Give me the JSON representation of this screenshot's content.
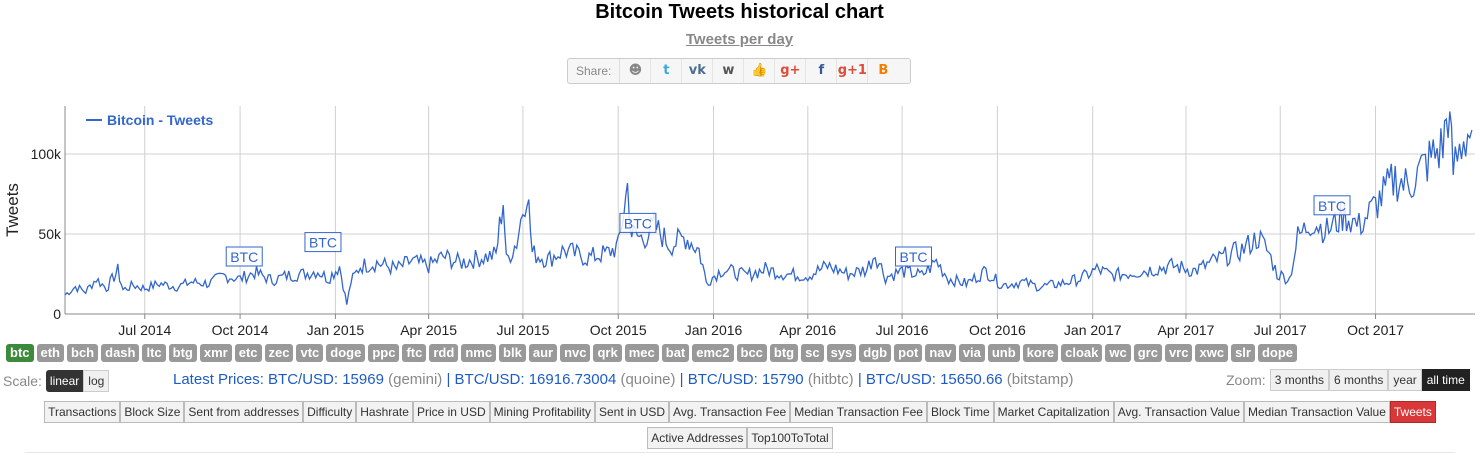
{
  "title": "Bitcoin Tweets historical chart",
  "subtitle": "Tweets per day",
  "share": {
    "label": "Share:",
    "icons": [
      {
        "name": "reddit-icon",
        "glyph": "☻",
        "color": "#888"
      },
      {
        "name": "twitter-icon",
        "glyph": "t",
        "color": "#3aa7e0"
      },
      {
        "name": "vk-icon",
        "glyph": "vk",
        "color": "#4c6c91"
      },
      {
        "name": "weibo-icon",
        "glyph": "w",
        "color": "#555"
      },
      {
        "name": "like-icon",
        "glyph": "👍",
        "color": "#5b79b4"
      },
      {
        "name": "google-plus-icon",
        "glyph": "g+",
        "color": "#dd4b39"
      },
      {
        "name": "facebook-icon",
        "glyph": "f",
        "color": "#3b5998"
      },
      {
        "name": "google-plus-one-icon",
        "glyph": "g+1",
        "color": "#dd4b39"
      },
      {
        "name": "blogger-icon",
        "glyph": "B",
        "color": "#f57d00"
      }
    ]
  },
  "chart_data": {
    "type": "line",
    "ylabel": "Tweets",
    "yticks": [
      {
        "v": 0,
        "label": "0"
      },
      {
        "v": 50000,
        "label": "50k"
      },
      {
        "v": 100000,
        "label": "100k"
      }
    ],
    "ylim": [
      0,
      130000
    ],
    "xlim": [
      "2014-04-15",
      "2018-01-05"
    ],
    "xticks": [
      {
        "date": "2014-07-01",
        "label": "Jul 2014"
      },
      {
        "date": "2014-10-01",
        "label": "Oct 2014"
      },
      {
        "date": "2015-01-01",
        "label": "Jan 2015"
      },
      {
        "date": "2015-04-01",
        "label": "Apr 2015"
      },
      {
        "date": "2015-07-01",
        "label": "Jul 2015"
      },
      {
        "date": "2015-10-01",
        "label": "Oct 2015"
      },
      {
        "date": "2016-01-01",
        "label": "Jan 2016"
      },
      {
        "date": "2016-04-01",
        "label": "Apr 2016"
      },
      {
        "date": "2016-07-01",
        "label": "Jul 2016"
      },
      {
        "date": "2016-10-01",
        "label": "Oct 2016"
      },
      {
        "date": "2017-01-01",
        "label": "Jan 2017"
      },
      {
        "date": "2017-04-01",
        "label": "Apr 2017"
      },
      {
        "date": "2017-07-01",
        "label": "Jul 2017"
      },
      {
        "date": "2017-10-01",
        "label": "Oct 2017"
      }
    ],
    "grid": true,
    "legend_placement": "top-left",
    "series": [
      {
        "name": "Bitcoin - Tweets",
        "color": "#3366cc",
        "points": [
          [
            "2014-04-15",
            12000
          ],
          [
            "2014-04-25",
            17000
          ],
          [
            "2014-05-05",
            14000
          ],
          [
            "2014-05-15",
            22000
          ],
          [
            "2014-05-25",
            16000
          ],
          [
            "2014-06-05",
            27000
          ],
          [
            "2014-06-10",
            15000
          ],
          [
            "2014-06-20",
            18000
          ],
          [
            "2014-07-01",
            16000
          ],
          [
            "2014-07-15",
            19000
          ],
          [
            "2014-08-01",
            17000
          ],
          [
            "2014-08-15",
            20000
          ],
          [
            "2014-09-01",
            19000
          ],
          [
            "2014-09-15",
            24000
          ],
          [
            "2014-10-01",
            22000
          ],
          [
            "2014-10-15",
            26000
          ],
          [
            "2014-11-01",
            21000
          ],
          [
            "2014-11-15",
            24000
          ],
          [
            "2014-12-01",
            25000
          ],
          [
            "2014-12-15",
            27000
          ],
          [
            "2014-12-25",
            22000
          ],
          [
            "2015-01-05",
            30000
          ],
          [
            "2015-01-12",
            6000
          ],
          [
            "2015-01-16",
            20000
          ],
          [
            "2015-01-25",
            30000
          ],
          [
            "2015-02-10",
            32000
          ],
          [
            "2015-03-01",
            28000
          ],
          [
            "2015-03-15",
            33000
          ],
          [
            "2015-04-01",
            30000
          ],
          [
            "2015-04-15",
            36000
          ],
          [
            "2015-05-01",
            32000
          ],
          [
            "2015-05-20",
            35000
          ],
          [
            "2015-06-05",
            37000
          ],
          [
            "2015-06-12",
            72000
          ],
          [
            "2015-06-15",
            33000
          ],
          [
            "2015-06-25",
            45000
          ],
          [
            "2015-07-05",
            80000
          ],
          [
            "2015-07-10",
            38000
          ],
          [
            "2015-07-25",
            34000
          ],
          [
            "2015-08-10",
            40000
          ],
          [
            "2015-09-01",
            35000
          ],
          [
            "2015-09-20",
            38000
          ],
          [
            "2015-10-01",
            42000
          ],
          [
            "2015-10-10",
            80000
          ],
          [
            "2015-10-14",
            50000
          ],
          [
            "2015-10-25",
            47000
          ],
          [
            "2015-11-05",
            55000
          ],
          [
            "2015-11-20",
            43000
          ],
          [
            "2015-12-05",
            48000
          ],
          [
            "2015-12-18",
            40000
          ],
          [
            "2015-12-25",
            20000
          ],
          [
            "2016-01-10",
            28000
          ],
          [
            "2016-02-01",
            24000
          ],
          [
            "2016-02-20",
            28000
          ],
          [
            "2016-03-10",
            25000
          ],
          [
            "2016-04-01",
            24000
          ],
          [
            "2016-04-20",
            30000
          ],
          [
            "2016-05-10",
            25000
          ],
          [
            "2016-05-28",
            28000
          ],
          [
            "2016-06-05",
            38000
          ],
          [
            "2016-06-15",
            23000
          ],
          [
            "2016-07-01",
            27000
          ],
          [
            "2016-07-20",
            24000
          ],
          [
            "2016-08-03",
            33000
          ],
          [
            "2016-08-15",
            22000
          ],
          [
            "2016-09-01",
            19000
          ],
          [
            "2016-09-20",
            27000
          ],
          [
            "2016-10-05",
            18000
          ],
          [
            "2016-10-25",
            20000
          ],
          [
            "2016-11-10",
            17000
          ],
          [
            "2016-12-01",
            19000
          ],
          [
            "2016-12-20",
            22000
          ],
          [
            "2017-01-05",
            28000
          ],
          [
            "2017-01-20",
            24000
          ],
          [
            "2017-02-10",
            26000
          ],
          [
            "2017-03-01",
            28000
          ],
          [
            "2017-03-20",
            30000
          ],
          [
            "2017-04-10",
            27000
          ],
          [
            "2017-05-01",
            34000
          ],
          [
            "2017-05-25",
            40000
          ],
          [
            "2017-06-10",
            48000
          ],
          [
            "2017-06-20",
            38000
          ],
          [
            "2017-06-28",
            25000
          ],
          [
            "2017-07-10",
            22000
          ],
          [
            "2017-07-18",
            48000
          ],
          [
            "2017-08-01",
            58000
          ],
          [
            "2017-08-15",
            52000
          ],
          [
            "2017-09-01",
            62000
          ],
          [
            "2017-09-15",
            55000
          ],
          [
            "2017-10-01",
            68000
          ],
          [
            "2017-10-20",
            85000
          ],
          [
            "2017-11-01",
            80000
          ],
          [
            "2017-11-20",
            95000
          ],
          [
            "2017-12-05",
            105000
          ],
          [
            "2017-12-10",
            128000
          ],
          [
            "2017-12-15",
            90000
          ],
          [
            "2017-12-25",
            110000
          ],
          [
            "2018-01-02",
            115000
          ]
        ]
      }
    ],
    "annotations": [
      {
        "date": "2014-10-05",
        "value": 30000,
        "text": "BTC"
      },
      {
        "date": "2014-12-20",
        "value": 39000,
        "text": "BTC"
      },
      {
        "date": "2015-10-20",
        "value": 51000,
        "text": "BTC"
      },
      {
        "date": "2016-07-12",
        "value": 30000,
        "text": "BTC"
      },
      {
        "date": "2017-08-20",
        "value": 62000,
        "text": "BTC"
      }
    ]
  },
  "currencies": [
    "btc",
    "eth",
    "bch",
    "dash",
    "ltc",
    "btg",
    "xmr",
    "etc",
    "zec",
    "vtc",
    "doge",
    "ppc",
    "ftc",
    "rdd",
    "nmc",
    "blk",
    "aur",
    "nvc",
    "qrk",
    "mec",
    "bat",
    "emc2",
    "bcc",
    "btg",
    "sc",
    "sys",
    "dgb",
    "pot",
    "nav",
    "via",
    "unb",
    "kore",
    "cloak",
    "wc",
    "grc",
    "vrc",
    "xwc",
    "slr",
    "dope"
  ],
  "active_currency": "btc",
  "scale": {
    "label": "Scale:",
    "options": [
      "linear",
      "log"
    ],
    "selected": "linear"
  },
  "prices": {
    "label": "Latest Prices:",
    "items": [
      {
        "pair": "BTC/USD: 15969",
        "src": "(gemini)"
      },
      {
        "pair": "BTC/USD: 16916.73004",
        "src": "(quoine)"
      },
      {
        "pair": "BTC/USD: 15790",
        "src": "(hitbtc)"
      },
      {
        "pair": "BTC/USD: 15650.66",
        "src": "(bitstamp)"
      }
    ]
  },
  "zoom": {
    "label": "Zoom:",
    "options": [
      "3 months",
      "6 months",
      "year",
      "all time"
    ],
    "selected": "all time"
  },
  "metrics": {
    "row1": [
      "Transactions",
      "Block Size",
      "Sent from addresses",
      "Difficulty",
      "Hashrate",
      "Price in USD",
      "Mining Profitability",
      "Sent in USD",
      "Avg. Transaction Fee",
      "Median Transaction Fee",
      "Block Time",
      "Market Capitalization",
      "Avg. Transaction Value",
      "Median Transaction Value",
      "Tweets"
    ],
    "row2": [
      "Active Addresses",
      "Top100ToTotal"
    ],
    "selected": "Tweets"
  }
}
